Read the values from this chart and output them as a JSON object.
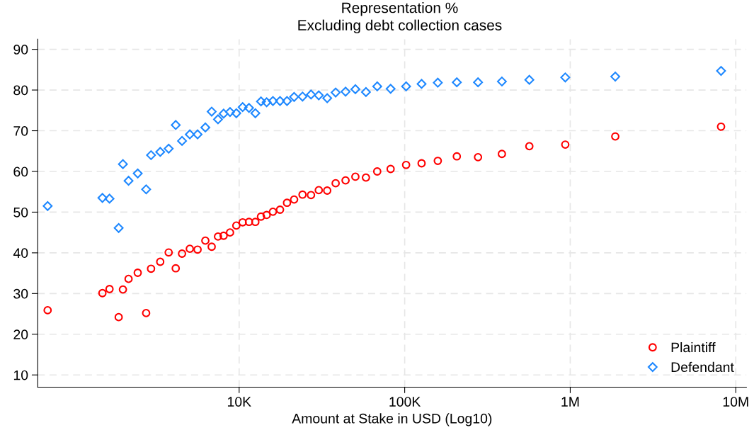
{
  "chart_data": {
    "type": "scatter",
    "title": "Representation %",
    "subtitle": "Excluding debt collection cases",
    "xlabel": "Amount at Stake in USD (Log10)",
    "x": [
      697,
      1493,
      1648,
      1872,
      1986,
      2148,
      2440,
      2743,
      2937,
      3337,
      3753,
      4140,
      4519,
      5035,
      5610,
      6250,
      6826,
      7452,
      8058,
      8810,
      9616,
      10500,
      11470,
      12530,
      13550,
      14660,
      16000,
      17660,
      19460,
      21480,
      24150,
      27170,
      30270,
      34040,
      38280,
      43940,
      50370,
      58340,
      68250,
      82220,
      102000,
      126500,
      158500,
      206500,
      277300,
      386500,
      566200,
      933300,
      1871000,
      8147000
    ],
    "series": [
      {
        "name": "Plaintiff",
        "color": "#ff0000",
        "marker": "circle",
        "values": [
          25.9,
          30.1,
          31.1,
          24.2,
          31.0,
          33.6,
          35.1,
          25.2,
          36.1,
          37.8,
          40.1,
          36.2,
          39.8,
          41.0,
          40.8,
          43.0,
          41.5,
          44.0,
          44.2,
          45.0,
          46.7,
          47.5,
          47.6,
          47.6,
          48.9,
          49.3,
          50.1,
          50.6,
          52.3,
          53.1,
          54.3,
          54.2,
          55.4,
          55.3,
          57.1,
          57.8,
          58.7,
          58.5,
          60.0,
          60.6,
          61.6,
          62.0,
          62.6,
          63.7,
          63.5,
          64.3,
          66.2,
          66.6,
          68.6,
          71.0
        ]
      },
      {
        "name": "Defendant",
        "color": "#1e88ff",
        "marker": "diamond",
        "values": [
          51.5,
          53.5,
          53.3,
          46.1,
          61.8,
          57.7,
          59.5,
          55.6,
          64.0,
          64.8,
          65.6,
          71.4,
          67.5,
          69.1,
          69.1,
          70.8,
          74.7,
          72.8,
          74.2,
          74.6,
          74.3,
          75.8,
          75.6,
          74.3,
          77.2,
          77.0,
          77.3,
          77.3,
          77.3,
          78.3,
          78.4,
          78.9,
          78.7,
          78.0,
          79.4,
          79.6,
          80.2,
          79.5,
          80.9,
          80.3,
          80.9,
          81.5,
          81.8,
          81.9,
          81.9,
          82.1,
          82.5,
          83.1,
          83.3,
          84.7
        ]
      }
    ],
    "log": "x",
    "xlim": [
      607,
      11600000
    ],
    "xticks": [
      {
        "value": 10000,
        "label": "10K"
      },
      {
        "value": 100000,
        "label": "100K"
      },
      {
        "value": 1000000,
        "label": "1M"
      },
      {
        "value": 10000000,
        "label": "10M"
      }
    ],
    "ylim": [
      7,
      92.5
    ],
    "yticks": [
      10,
      20,
      30,
      40,
      50,
      60,
      70,
      80,
      90
    ],
    "grid": true,
    "legend": "bottom right"
  }
}
